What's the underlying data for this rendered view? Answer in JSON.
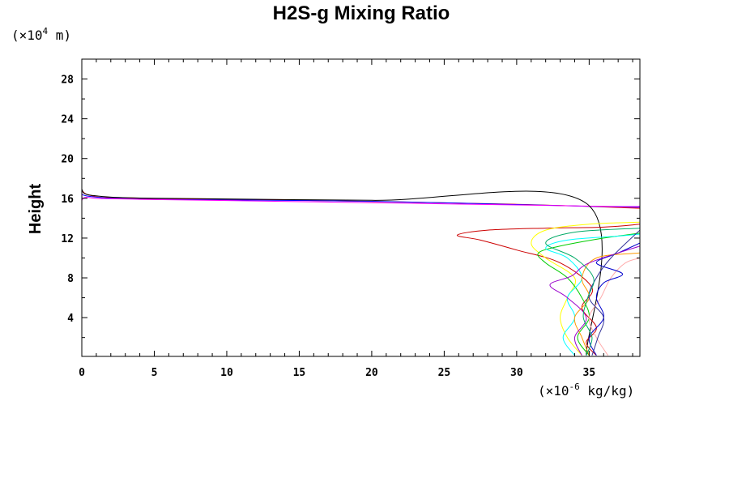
{
  "chart_data": {
    "type": "line",
    "title": "H2S-g Mixing Ratio",
    "ylabel": "Height",
    "y_unit": {
      "prefix": "(×10",
      "exp": "4",
      "suffix": " m)"
    },
    "x_unit": {
      "prefix": "(×10",
      "exp": "-6",
      "suffix": " kg/kg)"
    },
    "xlim": [
      0,
      38.5
    ],
    "ylim": [
      0.1,
      30
    ],
    "x_ticks": [
      0,
      5,
      10,
      15,
      20,
      25,
      30,
      35
    ],
    "x_tick_labels": [
      "0",
      "5",
      "10",
      "15",
      "20",
      "25",
      "30",
      "35"
    ],
    "y_ticks": [
      4,
      8,
      12,
      16,
      20,
      24,
      28
    ],
    "y_tick_labels": [
      "4",
      "8",
      "12",
      "16",
      "20",
      "24",
      "28"
    ],
    "grid": false,
    "legend": "none",
    "series": [
      {
        "color": "#ff0000",
        "points": [
          [
            0,
            16.8
          ],
          [
            0.6,
            16.3
          ],
          [
            3,
            16.0
          ],
          [
            15,
            15.8
          ],
          [
            30,
            15.4
          ],
          [
            38.5,
            15.0
          ]
        ]
      },
      {
        "color": "#0000ff",
        "points": [
          [
            0,
            16.8
          ],
          [
            0.5,
            16.2
          ],
          [
            5,
            15.9
          ],
          [
            20,
            15.7
          ],
          [
            35,
            15.2
          ],
          [
            38.5,
            15.1
          ]
        ]
      },
      {
        "color": "#ff00ff",
        "points": [
          [
            0,
            30
          ],
          [
            0,
            16.8
          ],
          [
            0.4,
            16.1
          ],
          [
            4,
            15.9
          ],
          [
            18,
            15.6
          ],
          [
            36,
            15.2
          ],
          [
            38.5,
            15.2
          ]
        ]
      },
      {
        "color": "#000000",
        "points": [
          [
            0,
            16.9
          ],
          [
            0.7,
            16.3
          ],
          [
            5,
            16.0
          ],
          [
            20,
            15.8
          ],
          [
            34.8,
            15.5
          ],
          [
            34.8,
            0.2
          ]
        ]
      },
      {
        "color": "#cc0000",
        "points": [
          [
            35.5,
            0.2
          ],
          [
            34.8,
            1.5
          ],
          [
            35.5,
            3
          ],
          [
            34.5,
            5
          ],
          [
            35.2,
            7
          ],
          [
            33,
            9.5
          ],
          [
            30,
            10.8
          ],
          [
            27.5,
            11.8
          ],
          [
            25.9,
            12.3
          ],
          [
            28,
            12.8
          ],
          [
            32,
            13.0
          ],
          [
            36,
            13.1
          ],
          [
            38.5,
            13.4
          ]
        ]
      },
      {
        "color": "#ffff00",
        "points": [
          [
            34.5,
            0.2
          ],
          [
            33.5,
            2
          ],
          [
            33,
            4
          ],
          [
            33.5,
            6
          ],
          [
            34,
            8
          ],
          [
            32,
            10
          ],
          [
            31,
            11.5
          ],
          [
            32,
            12.8
          ],
          [
            35,
            13.4
          ],
          [
            38.5,
            13.6
          ]
        ]
      },
      {
        "color": "#00cc00",
        "points": [
          [
            35,
            0.2
          ],
          [
            34.2,
            2
          ],
          [
            35,
            4
          ],
          [
            34.5,
            6
          ],
          [
            33.5,
            8
          ],
          [
            32,
            9.5
          ],
          [
            31.5,
            10.5
          ],
          [
            33,
            11.2
          ],
          [
            36,
            12
          ],
          [
            38.5,
            12.5
          ]
        ]
      },
      {
        "color": "#00ffff",
        "points": [
          [
            34,
            0.2
          ],
          [
            33.2,
            2
          ],
          [
            34,
            4
          ],
          [
            33.5,
            6
          ],
          [
            34.5,
            8
          ],
          [
            33.5,
            10
          ],
          [
            32,
            11
          ],
          [
            33.5,
            11.8
          ],
          [
            37,
            12.2
          ],
          [
            38.5,
            12.4
          ]
        ]
      },
      {
        "color": "#ffaaaa",
        "points": [
          [
            36.3,
            0.2
          ],
          [
            35.5,
            2
          ],
          [
            35,
            4
          ],
          [
            35.8,
            6
          ],
          [
            36.5,
            8
          ],
          [
            37.5,
            9.5
          ],
          [
            38.5,
            10
          ]
        ]
      },
      {
        "color": "#0000cc",
        "points": [
          [
            35.5,
            0.2
          ],
          [
            35,
            2
          ],
          [
            36,
            4
          ],
          [
            35.5,
            6
          ],
          [
            36,
            7.5
          ],
          [
            37.3,
            8.4
          ],
          [
            35.5,
            9.5
          ],
          [
            37,
            10.5
          ],
          [
            38.5,
            11.5
          ]
        ]
      },
      {
        "color": "#ff9900",
        "points": [
          [
            35,
            0.2
          ],
          [
            34.5,
            2
          ],
          [
            34,
            4
          ],
          [
            35,
            6
          ],
          [
            34.5,
            8
          ],
          [
            35.5,
            10
          ],
          [
            38.5,
            10.5
          ]
        ]
      },
      {
        "color": "#9900cc",
        "points": [
          [
            34.5,
            0.2
          ],
          [
            34,
            2
          ],
          [
            34.8,
            4
          ],
          [
            33.5,
            6
          ],
          [
            32.3,
            7.3
          ],
          [
            33.8,
            8.2
          ],
          [
            35,
            9.5
          ],
          [
            38.5,
            11.2
          ]
        ]
      },
      {
        "color": "#333399",
        "points": [
          [
            35.2,
            0.2
          ],
          [
            35.6,
            2
          ],
          [
            36,
            4
          ],
          [
            35,
            6
          ],
          [
            35.5,
            8
          ],
          [
            36.5,
            10
          ],
          [
            38.5,
            12.8
          ]
        ]
      },
      {
        "color": "#00aa66",
        "points": [
          [
            34.8,
            0.2
          ],
          [
            35.2,
            2
          ],
          [
            34.6,
            4
          ],
          [
            34.9,
            6
          ],
          [
            35.3,
            8
          ],
          [
            34,
            10
          ],
          [
            32,
            11.5
          ],
          [
            34,
            12.6
          ],
          [
            38.5,
            13.0
          ]
        ]
      }
    ]
  }
}
